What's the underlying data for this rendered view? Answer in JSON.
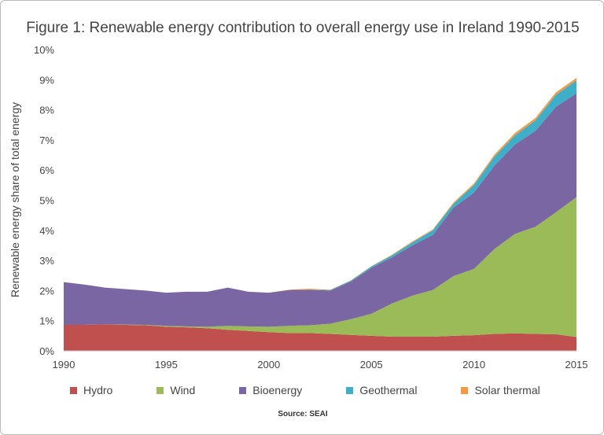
{
  "chart_data": {
    "type": "area",
    "stacked": true,
    "title": "Figure 1: Renewable energy contribution to overall energy use in Ireland 1990-2015",
    "xlabel": "",
    "ylabel": "Renewable energy share of total energy",
    "source": "Source: SEAI",
    "x": [
      1990,
      1991,
      1992,
      1993,
      1994,
      1995,
      1996,
      1997,
      1998,
      1999,
      2000,
      2001,
      2002,
      2003,
      2004,
      2005,
      2006,
      2007,
      2008,
      2009,
      2010,
      2011,
      2012,
      2013,
      2014,
      2015
    ],
    "xticks": [
      "1990",
      "1995",
      "2000",
      "2005",
      "2010",
      "2015"
    ],
    "yticks": [
      "0%",
      "1%",
      "2%",
      "3%",
      "4%",
      "5%",
      "6%",
      "7%",
      "8%",
      "9%",
      "10%"
    ],
    "ylim": [
      0,
      10
    ],
    "grid": false,
    "legend": "bottom",
    "series": [
      {
        "name": "Hydro",
        "color": "#c0504d",
        "values": [
          0.86,
          0.86,
          0.88,
          0.86,
          0.85,
          0.8,
          0.78,
          0.75,
          0.7,
          0.66,
          0.62,
          0.59,
          0.59,
          0.56,
          0.53,
          0.5,
          0.47,
          0.47,
          0.47,
          0.5,
          0.52,
          0.56,
          0.58,
          0.56,
          0.55,
          0.46
        ]
      },
      {
        "name": "Wind",
        "color": "#9bbb59",
        "values": [
          0,
          0,
          0,
          0.01,
          0.01,
          0.03,
          0.03,
          0.05,
          0.13,
          0.15,
          0.18,
          0.24,
          0.26,
          0.34,
          0.52,
          0.73,
          1.1,
          1.36,
          1.55,
          1.98,
          2.2,
          2.82,
          3.3,
          3.56,
          4.05,
          4.64
        ]
      },
      {
        "name": "Bioenergy",
        "color": "#7b66a4",
        "values": [
          1.42,
          1.34,
          1.22,
          1.18,
          1.14,
          1.1,
          1.15,
          1.16,
          1.27,
          1.15,
          1.13,
          1.19,
          1.18,
          1.1,
          1.25,
          1.52,
          1.53,
          1.67,
          1.83,
          2.27,
          2.53,
          2.77,
          2.97,
          3.18,
          3.5,
          3.45
        ]
      },
      {
        "name": "Geothermal",
        "color": "#3fafc9",
        "values": [
          0,
          0,
          0,
          0,
          0,
          0,
          0,
          0,
          0,
          0,
          0,
          0,
          0,
          0.02,
          0.03,
          0.05,
          0.07,
          0.1,
          0.15,
          0.13,
          0.25,
          0.3,
          0.3,
          0.35,
          0.4,
          0.43
        ]
      },
      {
        "name": "Solar thermal",
        "color": "#f59a42",
        "values": [
          0,
          0,
          0,
          0,
          0,
          0,
          0,
          0,
          0,
          0,
          0,
          0.01,
          0.03,
          0.01,
          0.01,
          0.01,
          0.02,
          0.03,
          0.03,
          0.04,
          0.05,
          0.06,
          0.08,
          0.08,
          0.08,
          0.08
        ]
      }
    ]
  }
}
